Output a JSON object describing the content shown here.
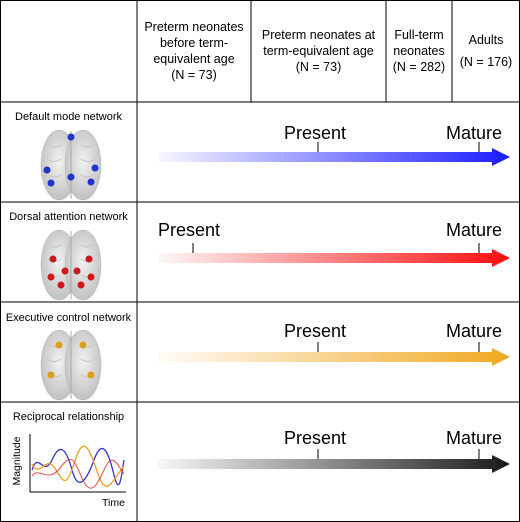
{
  "columns": [
    {
      "line1": "Preterm neonates",
      "line2": "before term-",
      "line3": "equivalent age",
      "n": "(N = 73)"
    },
    {
      "line1": "Preterm neonates at",
      "line2": "term-equivalent age",
      "n": "(N = 73)"
    },
    {
      "line1": "Full-term",
      "line2": "neonates",
      "n": "(N = 282)"
    },
    {
      "line1": "Adults",
      "n": "(N = 176)"
    }
  ],
  "rows": [
    {
      "label": "Default mode network",
      "present_label": "Present",
      "mature_label": "Mature",
      "color": "#1a1aff",
      "node_color": "#2233cc",
      "present_stage": 2
    },
    {
      "label": "Dorsal attention network",
      "present_label": "Present",
      "mature_label": "Mature",
      "color": "#ff0d0d",
      "node_color": "#cc1a1a",
      "present_stage": 1
    },
    {
      "label": "Executive control network",
      "present_label": "Present",
      "mature_label": "Mature",
      "color": "#f0a820",
      "node_color": "#d9a020",
      "present_stage": 2
    },
    {
      "label": "Reciprocal relationship",
      "present_label": "Present",
      "mature_label": "Mature",
      "color": "#1a1a1a",
      "present_stage": 2
    }
  ],
  "inset": {
    "ylabel": "Magnitude",
    "xlabel": "Time",
    "line_colors": [
      "#3333cc",
      "#f0a020",
      "#e03030"
    ]
  }
}
